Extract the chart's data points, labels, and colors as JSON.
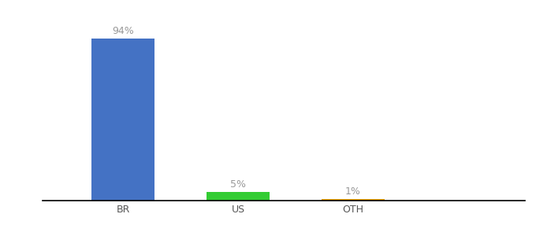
{
  "categories": [
    "BR",
    "US",
    "OTH"
  ],
  "values": [
    94,
    5,
    1
  ],
  "bar_colors": [
    "#4472c4",
    "#33cc33",
    "#f0a500"
  ],
  "labels": [
    "94%",
    "5%",
    "1%"
  ],
  "background_color": "#ffffff",
  "ylim": [
    0,
    100
  ],
  "bar_width": 0.55,
  "label_fontsize": 9,
  "tick_fontsize": 9,
  "label_color": "#999999",
  "tick_color": "#555555",
  "x_positions": [
    1,
    2,
    3
  ],
  "xlim": [
    0.3,
    4.5
  ]
}
